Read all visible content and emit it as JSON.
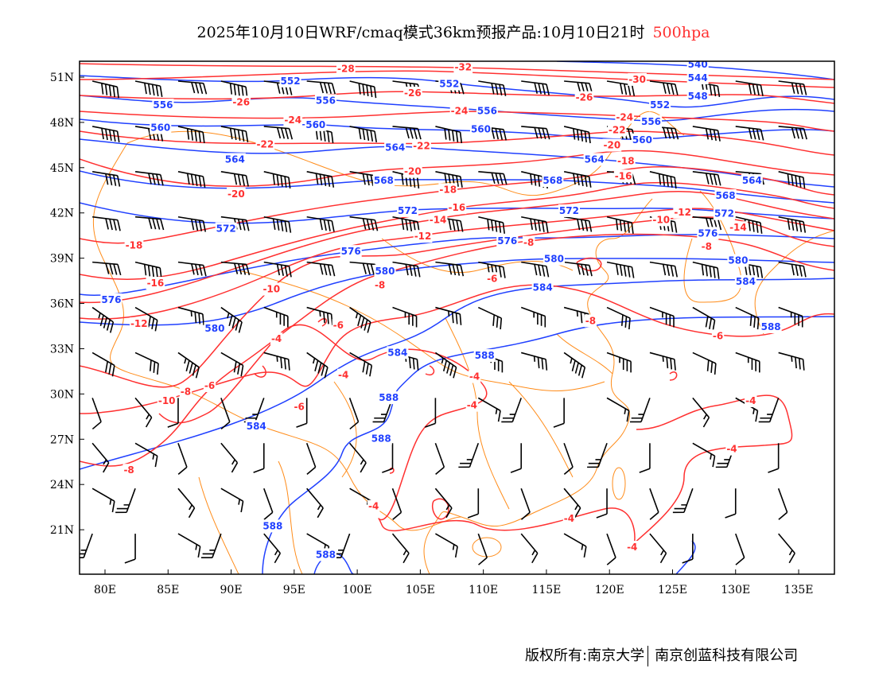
{
  "title": {
    "main": "2025年10月10日WRF/cmaq模式36km预报产品:10月10日21时",
    "level": "500hpa"
  },
  "footer": {
    "left": "版权所有:南京大学",
    "right": "南京创蓝科技有限公司"
  },
  "colors": {
    "height_contour": "#2040ff",
    "temperature_contour": "#ff3030",
    "border": "#ff8c1a",
    "wind_barb": "#000000"
  },
  "map": {
    "lon_range": [
      78,
      138
    ],
    "lat_range": [
      18,
      52
    ],
    "x_ticks": [
      {
        "value": 80,
        "label": "80E"
      },
      {
        "value": 85,
        "label": "85E"
      },
      {
        "value": 90,
        "label": "90E"
      },
      {
        "value": 95,
        "label": "95E"
      },
      {
        "value": 100,
        "label": "100E"
      },
      {
        "value": 105,
        "label": "105E"
      },
      {
        "value": 110,
        "label": "110E"
      },
      {
        "value": 115,
        "label": "115E"
      },
      {
        "value": 120,
        "label": "120E"
      },
      {
        "value": 125,
        "label": "125E"
      },
      {
        "value": 130,
        "label": "130E"
      },
      {
        "value": 135,
        "label": "135E"
      }
    ],
    "y_ticks": [
      {
        "value": 51,
        "label": "51N"
      },
      {
        "value": 48,
        "label": "48N"
      },
      {
        "value": 45,
        "label": "45N"
      },
      {
        "value": 42,
        "label": "42N"
      },
      {
        "value": 39,
        "label": "39N"
      },
      {
        "value": 36,
        "label": "36N"
      },
      {
        "value": 33,
        "label": "33N"
      },
      {
        "value": 30,
        "label": "30N"
      },
      {
        "value": 27,
        "label": "27N"
      },
      {
        "value": 24,
        "label": "24N"
      },
      {
        "value": 21,
        "label": "21N"
      }
    ],
    "height_labels": [
      {
        "text": "540",
        "lon": 127.0,
        "lat": 51.9
      },
      {
        "text": "544",
        "lon": 127.0,
        "lat": 51.0
      },
      {
        "text": "548",
        "lon": 127.0,
        "lat": 49.8
      },
      {
        "text": "552",
        "lon": 94.7,
        "lat": 50.8
      },
      {
        "text": "552",
        "lon": 107.3,
        "lat": 50.6
      },
      {
        "text": "552",
        "lon": 124.0,
        "lat": 49.2
      },
      {
        "text": "556",
        "lon": 84.6,
        "lat": 49.2
      },
      {
        "text": "556",
        "lon": 97.5,
        "lat": 49.5
      },
      {
        "text": "556",
        "lon": 110.3,
        "lat": 48.8
      },
      {
        "text": "556",
        "lon": 123.3,
        "lat": 48.1
      },
      {
        "text": "560",
        "lon": 84.4,
        "lat": 47.7
      },
      {
        "text": "560",
        "lon": 96.7,
        "lat": 47.9
      },
      {
        "text": "560",
        "lon": 109.8,
        "lat": 47.6
      },
      {
        "text": "560",
        "lon": 122.6,
        "lat": 46.9
      },
      {
        "text": "564",
        "lon": 90.3,
        "lat": 45.6
      },
      {
        "text": "564",
        "lon": 103.0,
        "lat": 46.4
      },
      {
        "text": "564",
        "lon": 118.8,
        "lat": 45.6
      },
      {
        "text": "564",
        "lon": 131.3,
        "lat": 44.2
      },
      {
        "text": "568",
        "lon": 102.1,
        "lat": 44.2
      },
      {
        "text": "568",
        "lon": 115.5,
        "lat": 44.2
      },
      {
        "text": "568",
        "lon": 129.2,
        "lat": 43.2
      },
      {
        "text": "572",
        "lon": 89.6,
        "lat": 41.0
      },
      {
        "text": "572",
        "lon": 104.0,
        "lat": 42.2
      },
      {
        "text": "572",
        "lon": 116.8,
        "lat": 42.2
      },
      {
        "text": "572",
        "lon": 129.1,
        "lat": 42.0
      },
      {
        "text": "576",
        "lon": 80.5,
        "lat": 36.3
      },
      {
        "text": "576",
        "lon": 99.5,
        "lat": 39.5
      },
      {
        "text": "576",
        "lon": 111.9,
        "lat": 40.2
      },
      {
        "text": "576",
        "lon": 127.8,
        "lat": 40.7
      },
      {
        "text": "580",
        "lon": 88.7,
        "lat": 34.4
      },
      {
        "text": "580",
        "lon": 102.2,
        "lat": 38.2
      },
      {
        "text": "580",
        "lon": 115.6,
        "lat": 39.0
      },
      {
        "text": "580",
        "lon": 130.2,
        "lat": 38.9
      },
      {
        "text": "584",
        "lon": 114.7,
        "lat": 37.1
      },
      {
        "text": "584",
        "lon": 130.8,
        "lat": 37.5
      },
      {
        "text": "584",
        "lon": 103.2,
        "lat": 32.8
      },
      {
        "text": "584",
        "lon": 92.0,
        "lat": 27.9
      },
      {
        "text": "588",
        "lon": 110.1,
        "lat": 32.6
      },
      {
        "text": "588",
        "lon": 102.5,
        "lat": 29.8
      },
      {
        "text": "588",
        "lon": 101.9,
        "lat": 27.1
      },
      {
        "text": "588",
        "lon": 132.8,
        "lat": 34.5
      },
      {
        "text": "588",
        "lon": 93.3,
        "lat": 21.3
      },
      {
        "text": "588",
        "lon": 97.5,
        "lat": 19.4
      }
    ],
    "temperature_labels": [
      {
        "text": "-32",
        "lon": 108.4,
        "lat": 51.7
      },
      {
        "text": "-30",
        "lon": 122.2,
        "lat": 50.9
      },
      {
        "text": "-28",
        "lon": 99.1,
        "lat": 51.6
      },
      {
        "text": "-26",
        "lon": 90.8,
        "lat": 49.4
      },
      {
        "text": "-26",
        "lon": 104.4,
        "lat": 50.0
      },
      {
        "text": "-26",
        "lon": 118.0,
        "lat": 49.7
      },
      {
        "text": "-24",
        "lon": 108.1,
        "lat": 48.8
      },
      {
        "text": "-24",
        "lon": 94.9,
        "lat": 48.2
      },
      {
        "text": "-24",
        "lon": 121.2,
        "lat": 48.4
      },
      {
        "text": "-22",
        "lon": 92.7,
        "lat": 46.6
      },
      {
        "text": "-22",
        "lon": 105.1,
        "lat": 46.5
      },
      {
        "text": "-22",
        "lon": 120.6,
        "lat": 47.7
      },
      {
        "text": "-20",
        "lon": 90.4,
        "lat": 43.3
      },
      {
        "text": "-20",
        "lon": 104.4,
        "lat": 44.8
      },
      {
        "text": "-20",
        "lon": 120.2,
        "lat": 46.7
      },
      {
        "text": "-18",
        "lon": 121.3,
        "lat": 45.5
      },
      {
        "text": "-18",
        "lon": 107.2,
        "lat": 43.6
      },
      {
        "text": "-18",
        "lon": 82.3,
        "lat": 39.9
      },
      {
        "text": "-16",
        "lon": 121.1,
        "lat": 44.5
      },
      {
        "text": "-16",
        "lon": 107.9,
        "lat": 42.4
      },
      {
        "text": "-16",
        "lon": 84.0,
        "lat": 37.4
      },
      {
        "text": "-14",
        "lon": 106.4,
        "lat": 41.6
      },
      {
        "text": "-14",
        "lon": 130.2,
        "lat": 42.5
      },
      {
        "text": "-12",
        "lon": 105.2,
        "lat": 40.5
      },
      {
        "text": "-12",
        "lon": 125.8,
        "lat": 42.1
      },
      {
        "text": "-12",
        "lon": 82.7,
        "lat": 34.7
      },
      {
        "text": "-10",
        "lon": 124.1,
        "lat": 41.6
      },
      {
        "text": "-10",
        "lon": 93.2,
        "lat": 37.0
      },
      {
        "text": "-10",
        "lon": 84.9,
        "lat": 29.6
      },
      {
        "text": "-8",
        "lon": 113.6,
        "lat": 40.1
      },
      {
        "text": "-8",
        "lon": 101.8,
        "lat": 37.9
      },
      {
        "text": "-8",
        "lon": 127.7,
        "lat": 40.3
      },
      {
        "text": "-8",
        "lon": 118.5,
        "lat": 34.9
      },
      {
        "text": "-8",
        "lon": 86.4,
        "lat": 30.2
      },
      {
        "text": "-8",
        "lon": 81.9,
        "lat": 25.0
      },
      {
        "text": "-6",
        "lon": 110.7,
        "lat": 37.7
      },
      {
        "text": "-6",
        "lon": 98.5,
        "lat": 34.6
      },
      {
        "text": "-6",
        "lon": 88.3,
        "lat": 30.6
      },
      {
        "text": "-6",
        "lon": 95.4,
        "lat": 29.2
      },
      {
        "text": "-6",
        "lon": 128.6,
        "lat": 33.9
      },
      {
        "text": "-4",
        "lon": 93.6,
        "lat": 33.7
      },
      {
        "text": "-4",
        "lon": 98.9,
        "lat": 31.3
      },
      {
        "text": "-4",
        "lon": 109.3,
        "lat": 31.2
      },
      {
        "text": "-4",
        "lon": 109.1,
        "lat": 29.3
      },
      {
        "text": "-4",
        "lon": 101.3,
        "lat": 22.6
      },
      {
        "text": "-4",
        "lon": 116.8,
        "lat": 21.8
      },
      {
        "text": "-4",
        "lon": 121.8,
        "lat": 19.9
      },
      {
        "text": "-4",
        "lon": 131.2,
        "lat": 29.6
      },
      {
        "text": "-4",
        "lon": 129.7,
        "lat": 26.4
      }
    ]
  }
}
